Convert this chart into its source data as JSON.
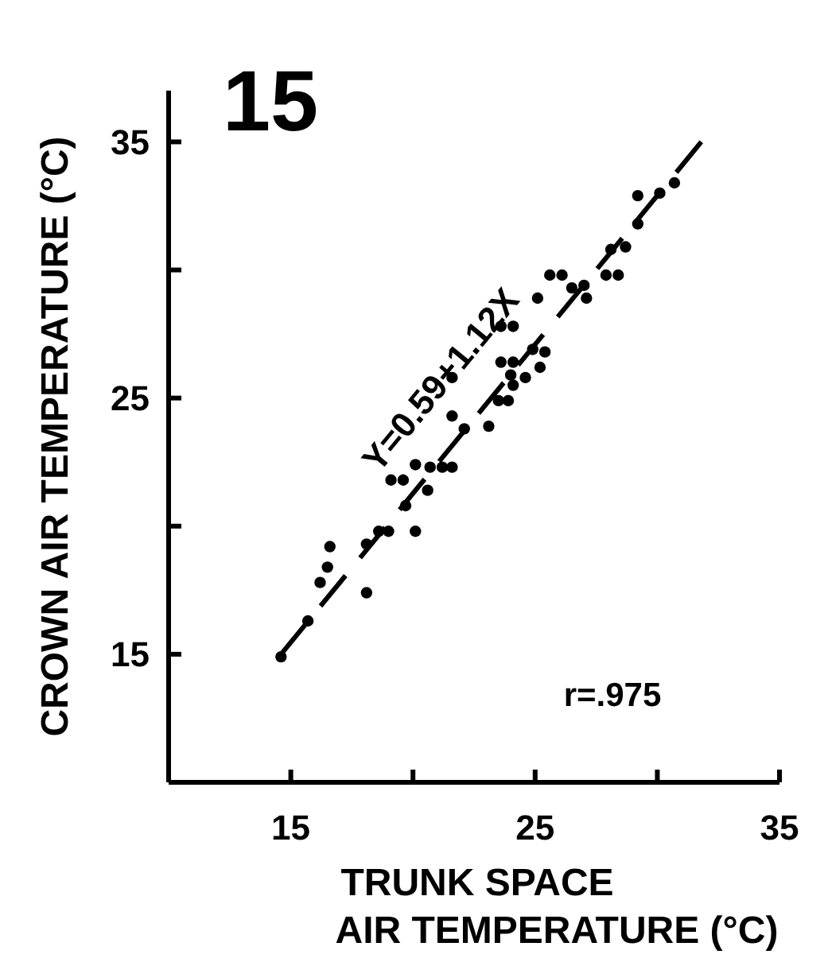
{
  "chart_data": {
    "type": "scatter",
    "title": "15",
    "xlabel": "TRUNK SPACE\nAIR TEMPERATURE (°C)",
    "ylabel": "CROWN AIR TEMPERATURE (°C)",
    "annotations": [
      "Y=0.59+1.12X",
      "r=.975"
    ],
    "xlim": [
      10,
      35
    ],
    "ylim": [
      10,
      37
    ],
    "xticks": [
      15,
      {
        "value": 20,
        "label": null
      },
      25,
      {
        "value": 30,
        "label": null
      },
      35
    ],
    "yticks": [
      15,
      {
        "value": 20,
        "label": null
      },
      25,
      {
        "value": 30,
        "label": null
      },
      35
    ],
    "grid": false,
    "marker": "circle",
    "series": [
      {
        "color": "#000000",
        "x": [
          14.6,
          15.7,
          16.2,
          16.5,
          16.6,
          18.1,
          18.1,
          18.6,
          19.0,
          19.7,
          20.1,
          19.1,
          19.6,
          20.6,
          20.1,
          20.7,
          21.2,
          21.6,
          21.6,
          22.1,
          23.1,
          23.5,
          23.9,
          24.1,
          24.0,
          24.6,
          25.2,
          23.6,
          24.1,
          24.9,
          25.4,
          23.6,
          24.1,
          25.1,
          26.5,
          27.1,
          27.0,
          25.6,
          26.1,
          27.9,
          28.4,
          28.1,
          28.7,
          29.2,
          29.2,
          30.1,
          30.7,
          21.6
        ],
        "values": [
          14.9,
          16.3,
          17.8,
          18.4,
          19.2,
          17.4,
          19.3,
          19.8,
          19.8,
          20.8,
          19.8,
          21.8,
          21.8,
          21.4,
          22.4,
          22.3,
          22.3,
          22.3,
          24.3,
          23.8,
          23.9,
          24.9,
          24.9,
          25.5,
          25.9,
          25.8,
          26.2,
          26.4,
          26.4,
          26.9,
          26.8,
          27.8,
          27.8,
          28.9,
          29.3,
          28.9,
          29.4,
          29.8,
          29.8,
          29.8,
          29.8,
          30.8,
          30.9,
          31.8,
          32.9,
          33.0,
          33.4,
          25.8
        ]
      },
      {
        "type": "line",
        "color": "#000000",
        "line_style": "dashed",
        "marker": "none",
        "x": [
          14.6,
          31.8
        ],
        "values": [
          15.0,
          35.0
        ]
      }
    ]
  }
}
